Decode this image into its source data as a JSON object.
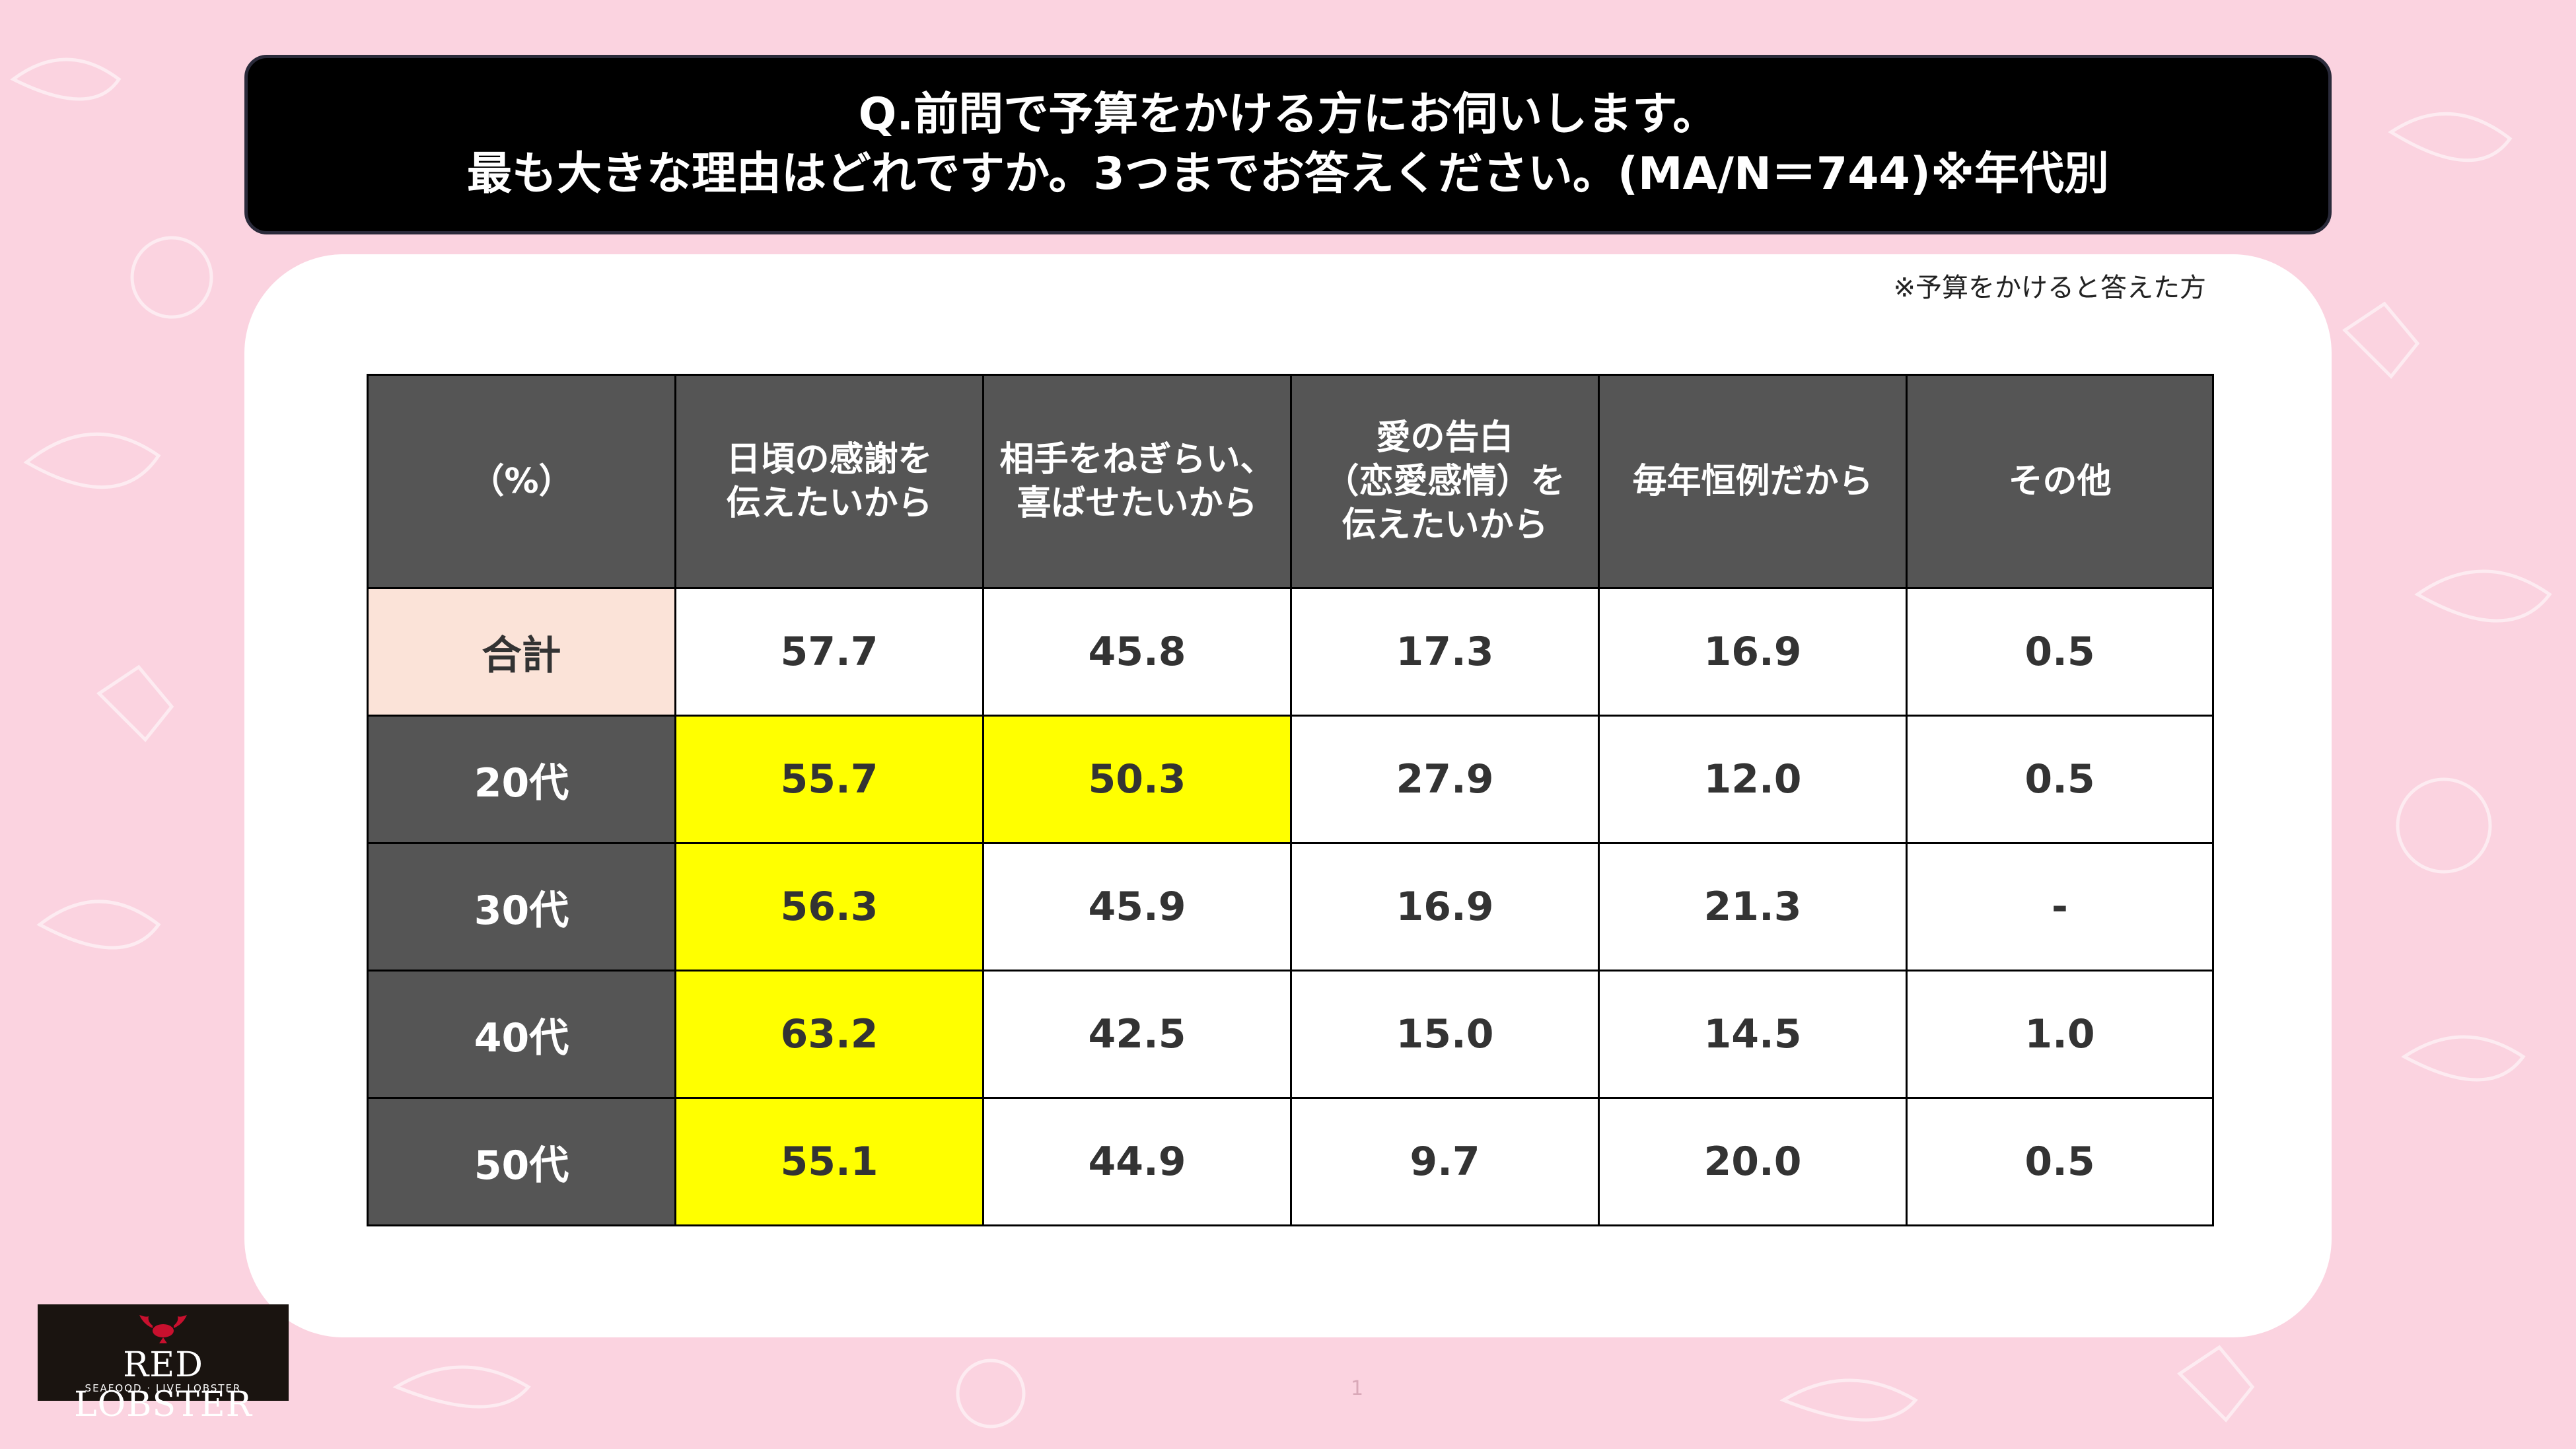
{
  "title": {
    "line1": "Q.前問で予算をかける方にお伺いします。",
    "line2": "最も大きな理由はどれですか。3つまでお答えください。(MA/N＝744)※年代別"
  },
  "note": "※予算をかけると答えた方",
  "chart_data": {
    "type": "table",
    "corner_label": "（%）",
    "columns": [
      [
        "日頃の感謝を",
        "伝えたいから"
      ],
      [
        "相手をねぎらい、",
        "喜ばせたいから"
      ],
      [
        "愛の告白",
        "（恋愛感情）を",
        "伝えたいから"
      ],
      [
        "毎年恒例だから"
      ],
      [
        "その他"
      ]
    ],
    "rows": [
      {
        "label": "合計",
        "values": [
          "57.7",
          "45.8",
          "17.3",
          "16.9",
          "0.5"
        ],
        "highlight": [
          false,
          false,
          false,
          false,
          false
        ]
      },
      {
        "label": "20代",
        "values": [
          "55.7",
          "50.3",
          "27.9",
          "12.0",
          "0.5"
        ],
        "highlight": [
          true,
          true,
          false,
          false,
          false
        ]
      },
      {
        "label": "30代",
        "values": [
          "56.3",
          "45.9",
          "16.9",
          "21.3",
          "-"
        ],
        "highlight": [
          true,
          false,
          false,
          false,
          false
        ]
      },
      {
        "label": "40代",
        "values": [
          "63.2",
          "42.5",
          "15.0",
          "14.5",
          "1.0"
        ],
        "highlight": [
          true,
          false,
          false,
          false,
          false
        ]
      },
      {
        "label": "50代",
        "values": [
          "55.1",
          "44.9",
          "9.7",
          "20.0",
          "0.5"
        ],
        "highlight": [
          true,
          false,
          false,
          false,
          false
        ]
      }
    ],
    "colors": {
      "header_bg": "#555555",
      "total_row_bg": "#fbe3d8",
      "highlight_bg": "#ffff00"
    }
  },
  "logo": {
    "brand": "RED LOBSTER",
    "tagline": "SEAFOOD · LIVE LOBSTER"
  },
  "page_number": "1",
  "colors": {
    "background": "#fbd3e0",
    "title_bg": "#000000"
  }
}
